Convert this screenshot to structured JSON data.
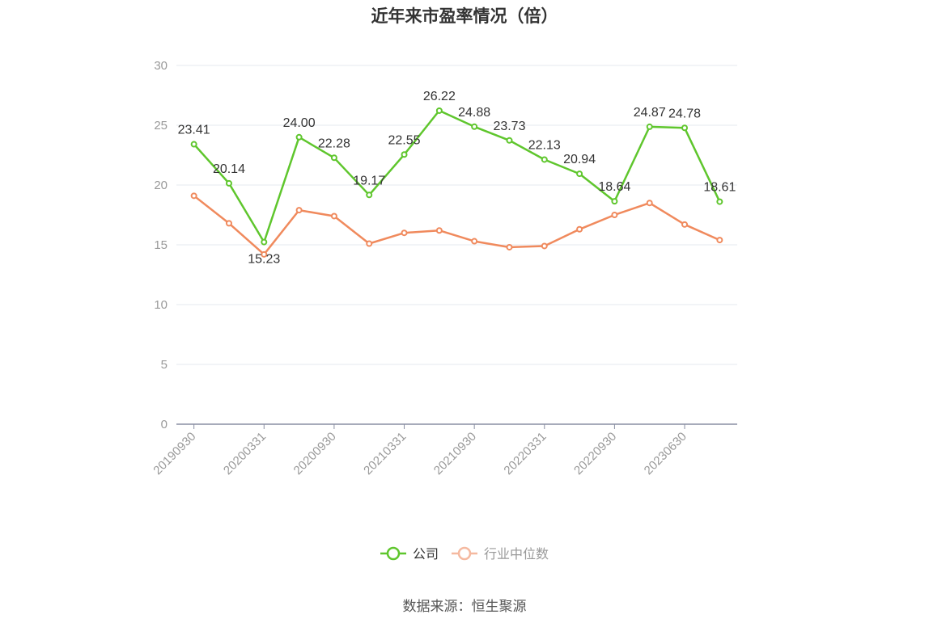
{
  "title": "近年来市盈率情况（倍）",
  "source": "数据来源：恒生聚源",
  "colors": {
    "company": "#5fc62d",
    "industry": "#f08a5d",
    "grid": "#e6e8ef",
    "axis": "#8a8fa3",
    "tick_text": "#999999"
  },
  "chart_data": {
    "type": "line",
    "title": "近年来市盈率情况（倍）",
    "xlabel": "",
    "ylabel": "",
    "ylim": [
      0,
      30
    ],
    "y_ticks": [
      "0",
      "5",
      "10",
      "15",
      "20",
      "25",
      "30"
    ],
    "grid": true,
    "legend_position": "bottom",
    "x_tick_labels": [
      "20190930",
      "20200331",
      "20200930",
      "20210331",
      "20210930",
      "20220331",
      "20220930",
      "20230630"
    ],
    "x": [
      "20190930",
      "",
      "20200331",
      "",
      "20200930",
      "",
      "20210331",
      "",
      "20210930",
      "",
      "20220331",
      "",
      "20220930",
      "",
      "20230630",
      ""
    ],
    "series": [
      {
        "name": "公司",
        "color": "#5fc62d",
        "show_labels": true,
        "values": [
          23.41,
          20.14,
          15.23,
          24.0,
          22.28,
          19.17,
          22.55,
          26.22,
          24.88,
          23.73,
          22.13,
          20.94,
          18.64,
          24.87,
          24.78,
          18.61
        ]
      },
      {
        "name": "行业中位数",
        "color": "#f08a5d",
        "show_labels": false,
        "values": [
          19.1,
          16.8,
          14.2,
          17.9,
          17.4,
          15.1,
          16.0,
          16.2,
          15.3,
          14.8,
          14.9,
          16.3,
          17.5,
          18.5,
          16.7,
          15.4
        ]
      }
    ]
  }
}
